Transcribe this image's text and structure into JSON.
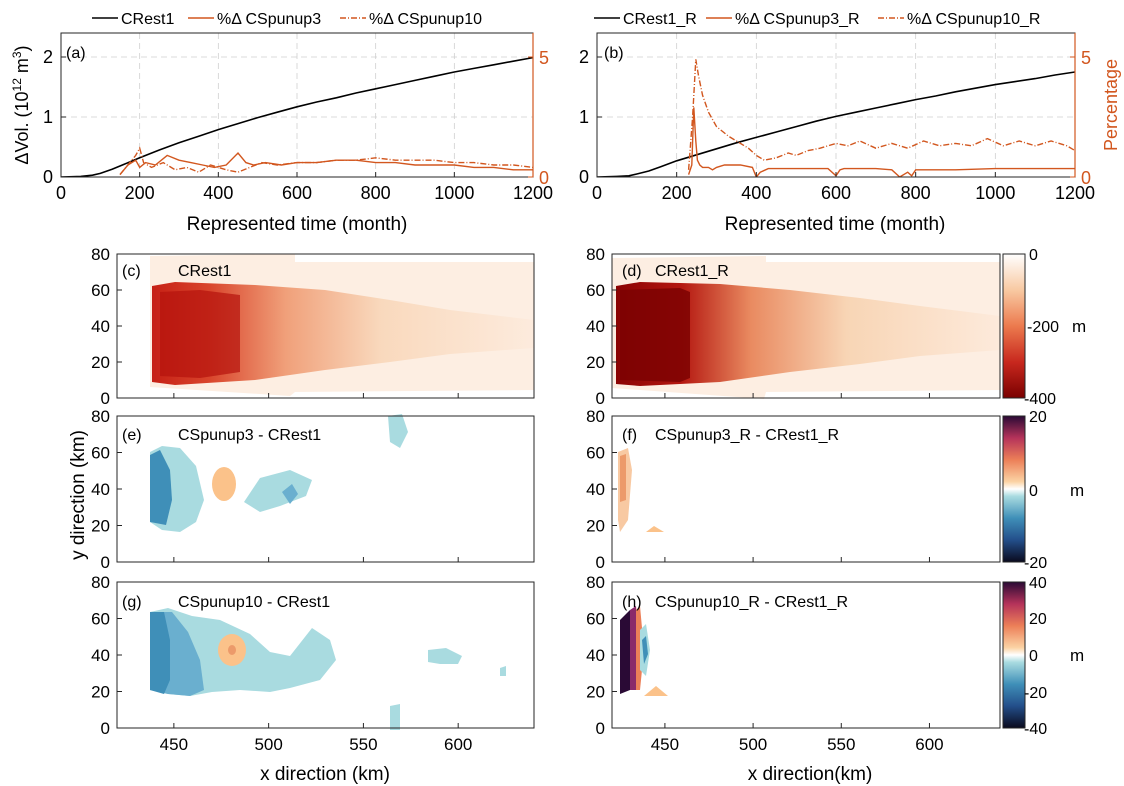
{
  "colors": {
    "black_line": "#000000",
    "orange": "#d2571f",
    "axis": "#262626",
    "grid": "#cfcfcf",
    "orange_axis": "#d2571f"
  },
  "chart_data": [
    {
      "panel": "(a)",
      "type": "line",
      "legend": {
        "position": "top",
        "entries": [
          "CRest1",
          "%Δ CSpunup3",
          "%Δ CSpunup10"
        ]
      },
      "xlabel": "Represented time (month)",
      "ylabel": "ΔVol. (10^12 m^3)",
      "ylabel_right": "",
      "xlim": [
        0,
        1200
      ],
      "ylim": [
        0,
        2.4
      ],
      "ylim_right": [
        0,
        6
      ],
      "xticks": [
        "0",
        "200",
        "400",
        "600",
        "800",
        "1000",
        "1200"
      ],
      "yticks": [
        "0",
        "1",
        "2"
      ],
      "yticks_right": [
        "0",
        "5"
      ],
      "grid": true,
      "series": [
        {
          "name": "CRest1",
          "axis": "left",
          "style": "solid",
          "color": "#000000",
          "x": [
            0,
            50,
            80,
            100,
            130,
            160,
            200,
            250,
            300,
            350,
            400,
            450,
            500,
            550,
            600,
            650,
            700,
            750,
            800,
            850,
            900,
            950,
            1000,
            1050,
            1100,
            1150,
            1200
          ],
          "y": [
            0,
            0.01,
            0.03,
            0.06,
            0.13,
            0.21,
            0.32,
            0.45,
            0.57,
            0.68,
            0.79,
            0.89,
            0.99,
            1.08,
            1.17,
            1.25,
            1.32,
            1.4,
            1.47,
            1.54,
            1.61,
            1.68,
            1.75,
            1.81,
            1.87,
            1.93,
            1.99
          ]
        },
        {
          "name": "%Δ CSpunup3",
          "axis": "right",
          "style": "solid",
          "color": "#d2571f",
          "x": [
            150,
            170,
            190,
            200,
            215,
            240,
            270,
            300,
            330,
            360,
            390,
            420,
            450,
            470,
            490,
            520,
            560,
            600,
            650,
            700,
            750,
            800,
            850,
            900,
            950,
            1000,
            1050,
            1100,
            1150,
            1200
          ],
          "y": [
            0.1,
            0.5,
            0.7,
            0.4,
            0.6,
            0.5,
            0.9,
            0.7,
            0.6,
            0.5,
            0.4,
            0.5,
            1.0,
            0.6,
            0.5,
            0.6,
            0.5,
            0.6,
            0.6,
            0.7,
            0.7,
            0.6,
            0.6,
            0.5,
            0.5,
            0.5,
            0.4,
            0.4,
            0.3,
            0.3
          ]
        },
        {
          "name": "%Δ CSpunup10",
          "axis": "right",
          "style": "dashdot",
          "color": "#d2571f",
          "x": [
            150,
            175,
            190,
            200,
            210,
            230,
            260,
            290,
            320,
            350,
            380,
            420,
            450,
            480,
            510,
            550,
            600,
            650,
            700,
            750,
            800,
            850,
            900,
            950,
            1000,
            1050,
            1100,
            1150,
            1200
          ],
          "y": [
            0.1,
            0.6,
            0.9,
            1.2,
            0.6,
            0.4,
            0.6,
            0.3,
            0.4,
            0.2,
            0.5,
            0.3,
            0.2,
            0.4,
            0.6,
            0.5,
            0.6,
            0.6,
            0.7,
            0.7,
            0.8,
            0.7,
            0.7,
            0.7,
            0.6,
            0.6,
            0.5,
            0.5,
            0.4
          ]
        }
      ]
    },
    {
      "panel": "(b)",
      "type": "line",
      "legend": {
        "position": "top",
        "entries": [
          "CRest1_R",
          "%Δ CSpunup3_R",
          "%Δ CSpunup10_R"
        ]
      },
      "xlabel": "Represented time (month)",
      "ylabel": "",
      "ylabel_right": "Percentage",
      "xlim": [
        0,
        1200
      ],
      "ylim": [
        0,
        2.4
      ],
      "ylim_right": [
        0,
        6
      ],
      "xticks": [
        "0",
        "200",
        "400",
        "600",
        "800",
        "1000",
        "1200"
      ],
      "yticks": [
        "0",
        "1",
        "2"
      ],
      "yticks_right": [
        "0",
        "5"
      ],
      "grid": true,
      "series": [
        {
          "name": "CRest1_R",
          "axis": "left",
          "style": "solid",
          "color": "#000000",
          "x": [
            0,
            50,
            80,
            100,
            130,
            160,
            200,
            250,
            300,
            350,
            400,
            450,
            500,
            550,
            600,
            650,
            700,
            750,
            800,
            850,
            900,
            950,
            1000,
            1050,
            1100,
            1150,
            1200
          ],
          "y": [
            0,
            0.01,
            0.02,
            0.05,
            0.1,
            0.17,
            0.27,
            0.37,
            0.47,
            0.57,
            0.66,
            0.75,
            0.84,
            0.93,
            1.01,
            1.08,
            1.15,
            1.22,
            1.29,
            1.35,
            1.42,
            1.48,
            1.54,
            1.59,
            1.64,
            1.7,
            1.75
          ]
        },
        {
          "name": "%Δ CSpunup3_R",
          "axis": "right",
          "style": "solid",
          "color": "#d2571f",
          "x": [
            230,
            238,
            243,
            248,
            252,
            258,
            265,
            280,
            290,
            300,
            320,
            360,
            390,
            400,
            410,
            430,
            460,
            500,
            550,
            580,
            600,
            610,
            620,
            650,
            700,
            740,
            760,
            780,
            790,
            800,
            850,
            900,
            1000,
            1100,
            1200
          ],
          "y": [
            0.1,
            0.5,
            2.9,
            1.5,
            0.7,
            0.5,
            0.4,
            0.4,
            0.3,
            0.4,
            0.5,
            0.5,
            0.4,
            0.0,
            0.2,
            0.35,
            0.35,
            0.35,
            0.35,
            0.35,
            0.05,
            0.3,
            0.35,
            0.35,
            0.35,
            0.3,
            0.0,
            0.2,
            0.05,
            0.3,
            0.3,
            0.3,
            0.35,
            0.35,
            0.35
          ]
        },
        {
          "name": "%Δ CSpunup10_R",
          "axis": "right",
          "style": "dashdot",
          "color": "#d2571f",
          "x": [
            230,
            240,
            248,
            255,
            265,
            280,
            300,
            330,
            360,
            380,
            400,
            420,
            450,
            480,
            500,
            530,
            560,
            600,
            630,
            660,
            700,
            740,
            780,
            820,
            860,
            900,
            940,
            980,
            1020,
            1060,
            1100,
            1140,
            1180,
            1200
          ],
          "y": [
            0.3,
            2.5,
            4.9,
            4.2,
            3.4,
            2.7,
            2.1,
            1.7,
            1.4,
            1.2,
            0.9,
            0.7,
            0.8,
            1.0,
            0.9,
            1.1,
            1.2,
            1.4,
            1.3,
            1.5,
            1.2,
            1.4,
            1.2,
            1.5,
            1.3,
            1.4,
            1.3,
            1.6,
            1.3,
            1.5,
            1.3,
            1.5,
            1.3,
            1.1
          ]
        }
      ]
    },
    {
      "panel": "(c)",
      "type": "heatmap",
      "label": "CRest1",
      "xlim": [
        420,
        640
      ],
      "ylim": [
        0,
        80
      ],
      "colorscale": "sequential_reds",
      "description_values": {
        "min": -400,
        "max": 0,
        "deep_zone_x": [
          435,
          470
        ],
        "deep_zone_y": [
          15,
          60
        ]
      }
    },
    {
      "panel": "(d)",
      "type": "heatmap",
      "label": "CRest1_R",
      "xlim": [
        420,
        640
      ],
      "ylim": [
        0,
        80
      ],
      "colorscale": "sequential_reds",
      "colorbar": {
        "ticks": [
          "0",
          "-200",
          "-400"
        ],
        "unit": "m",
        "range": [
          -400,
          0
        ]
      }
    },
    {
      "panel": "(e)",
      "type": "heatmap",
      "label": "CSpunup3 - CRest1",
      "xlim": [
        420,
        640
      ],
      "ylim": [
        0,
        80
      ],
      "colorscale": "diverging"
    },
    {
      "panel": "(f)",
      "type": "heatmap",
      "label": "CSpunup3_R - CRest1_R",
      "xlim": [
        420,
        640
      ],
      "ylim": [
        0,
        80
      ],
      "colorscale": "diverging",
      "colorbar": {
        "ticks": [
          "20",
          "0",
          "-20"
        ],
        "unit": "m",
        "range": [
          -20,
          20
        ]
      }
    },
    {
      "panel": "(g)",
      "type": "heatmap",
      "label": "CSpunup10 - CRest1",
      "xlim": [
        420,
        640
      ],
      "ylim": [
        0,
        80
      ],
      "colorscale": "diverging"
    },
    {
      "panel": "(h)",
      "type": "heatmap",
      "label": "CSpunup10_R - CRest1_R",
      "xlim": [
        420,
        640
      ],
      "ylim": [
        0,
        80
      ],
      "colorscale": "diverging",
      "colorbar": {
        "ticks": [
          "40",
          "20",
          "0",
          "-20",
          "-40"
        ],
        "unit": "m",
        "range": [
          -40,
          40
        ]
      }
    }
  ],
  "map_axes": {
    "ylabel": "y direction (km)",
    "xlabel_left": "x direction (km)",
    "xlabel_right": "x direction(km)",
    "yticks": [
      "0",
      "20",
      "40",
      "60",
      "80"
    ],
    "xticks": [
      "450",
      "500",
      "550",
      "600"
    ]
  }
}
